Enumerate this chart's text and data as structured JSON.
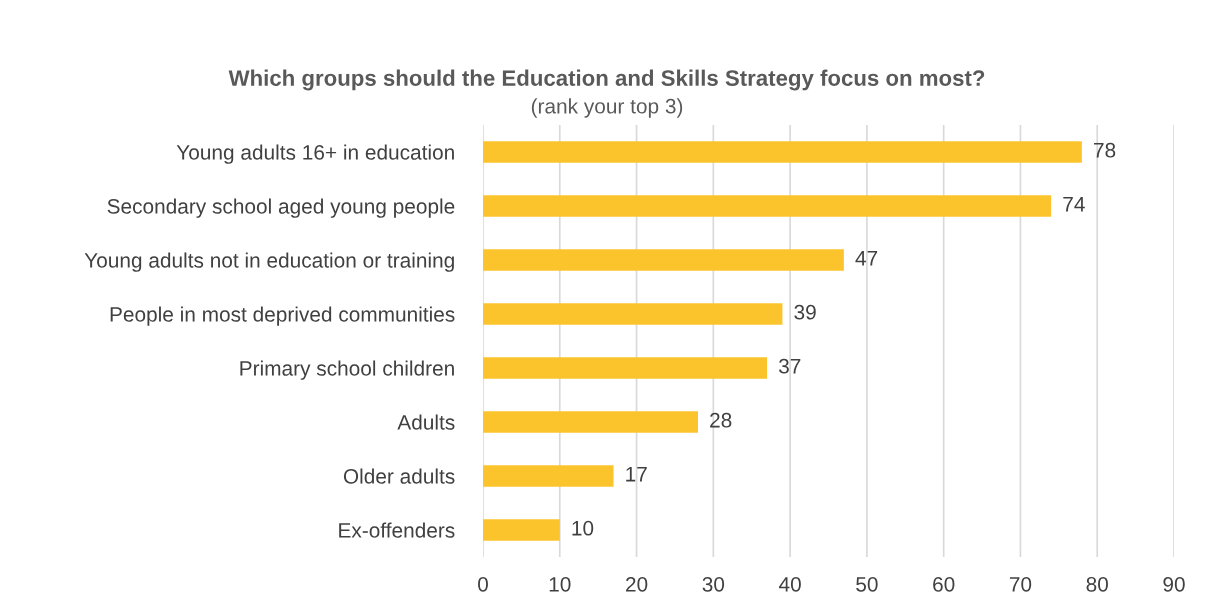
{
  "chart_data": {
    "type": "bar",
    "orientation": "horizontal",
    "title": "Which groups should the Education and Skills Strategy focus on most?",
    "subtitle": "(rank your top 3)",
    "categories": [
      "Young adults 16+ in education",
      "Secondary school aged young people",
      "Young adults not in education or training",
      "People in most deprived communities",
      "Primary school children",
      "Adults",
      "Older adults",
      "Ex-offenders"
    ],
    "values": [
      78,
      74,
      47,
      39,
      37,
      28,
      17,
      10
    ],
    "color": "#fcc42c",
    "xlim": [
      0,
      90
    ],
    "xticks": [
      0,
      10,
      20,
      30,
      40,
      50,
      60,
      70,
      80,
      90
    ],
    "grid": "x",
    "data_labels": true
  }
}
